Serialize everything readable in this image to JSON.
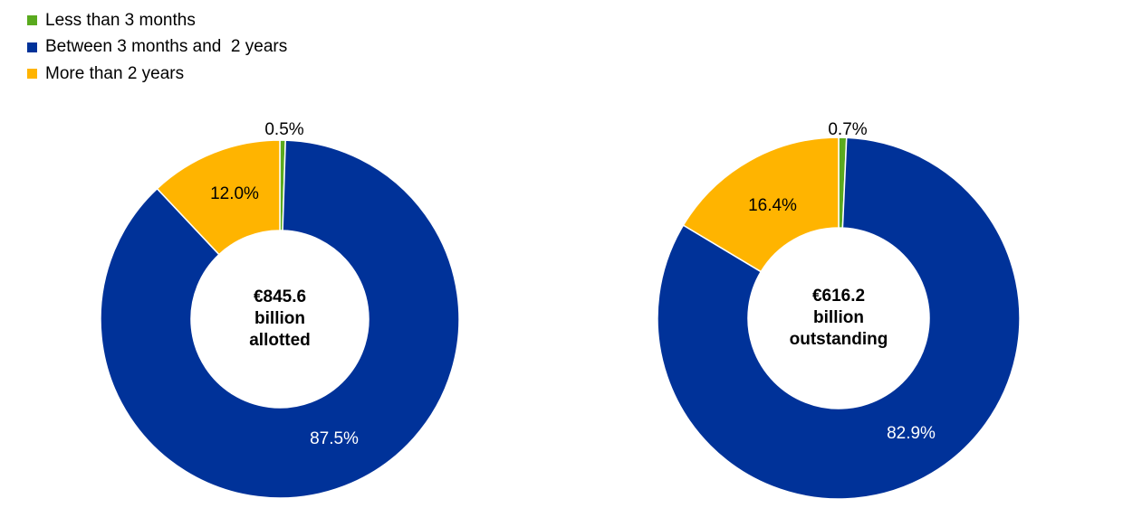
{
  "chart_data": {
    "type": "pie",
    "legend_position": "top-left",
    "series_names": [
      "Less than 3 months",
      "Between 3 months and  2 years",
      "More than 2 years"
    ],
    "colors": [
      "#5AAA1E",
      "#003299",
      "#FFB400"
    ],
    "charts": [
      {
        "center_text": [
          "€845.6",
          "billion",
          "allotted"
        ],
        "values": [
          0.5,
          87.5,
          12.0
        ],
        "labels": [
          "0.5%",
          "87.5%",
          "12.0%"
        ]
      },
      {
        "center_text": [
          "€616.2",
          "billion",
          "outstanding"
        ],
        "values": [
          0.7,
          82.9,
          16.4
        ],
        "labels": [
          "0.7%",
          "82.9%",
          "16.4%"
        ]
      }
    ]
  }
}
